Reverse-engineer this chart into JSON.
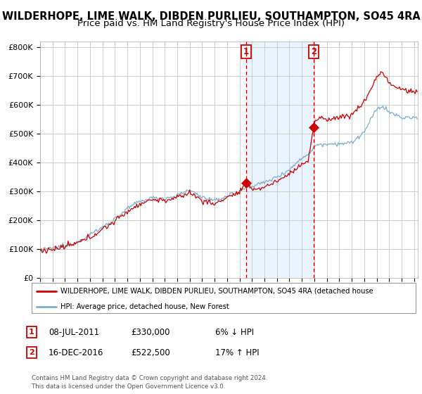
{
  "title1": "WILDERHOPE, LIME WALK, DIBDEN PURLIEU, SOUTHAMPTON, SO45 4RA",
  "title2": "Price paid vs. HM Land Registry's House Price Index (HPI)",
  "ylabel_ticks": [
    "£0",
    "£100K",
    "£200K",
    "£300K",
    "£400K",
    "£500K",
    "£600K",
    "£700K",
    "£800K"
  ],
  "ytick_vals": [
    0,
    100000,
    200000,
    300000,
    400000,
    500000,
    600000,
    700000,
    800000
  ],
  "ylim": [
    0,
    820000
  ],
  "xlim": [
    1995,
    2025.3
  ],
  "year_start": 1995,
  "year_end": 2025,
  "sale1_year": 2011.52,
  "sale1_price": 330000,
  "sale1_label": "1",
  "sale2_year": 2016.97,
  "sale2_price": 522500,
  "sale2_label": "2",
  "red_line_color": "#cc0000",
  "blue_line_color": "#7aadcc",
  "shade_color": "#ddeeff",
  "shade_alpha": 0.6,
  "dashed_line_color": "#cc0000",
  "legend_text1": "WILDERHOPE, LIME WALK, DIBDEN PURLIEU, SOUTHAMPTON, SO45 4RA (detached house",
  "legend_text2": "HPI: Average price, detached house, New Forest",
  "table_rows": [
    [
      "1",
      "08-JUL-2011",
      "£330,000",
      "6% ↓ HPI"
    ],
    [
      "2",
      "16-DEC-2016",
      "£522,500",
      "17% ↑ HPI"
    ]
  ],
  "footnote": "Contains HM Land Registry data © Crown copyright and database right 2024.\nThis data is licensed under the Open Government Licence v3.0.",
  "bg_color": "#ffffff",
  "grid_color": "#cccccc",
  "title_fontsize": 10.5,
  "subtitle_fontsize": 9.5
}
